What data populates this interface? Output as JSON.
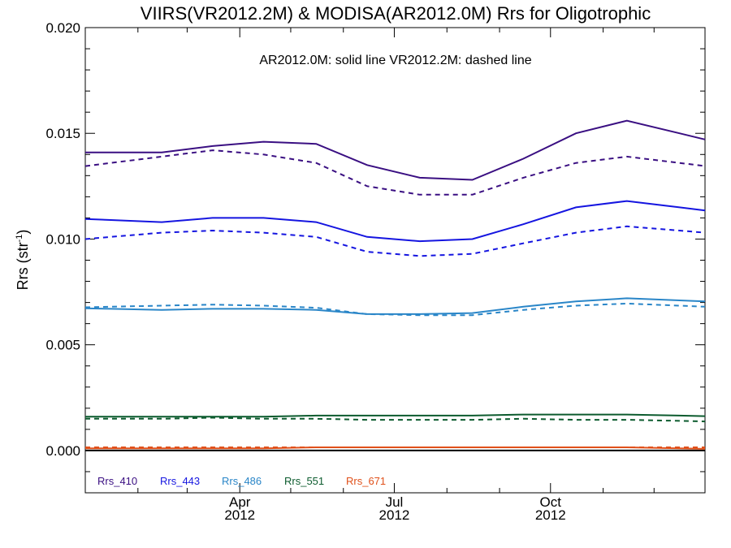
{
  "chart_data": {
    "type": "line",
    "title": "VIIRS(VR2012.2M) & MODISA(AR2012.0M)  Rrs for Oligotrophic",
    "ylabel_main": "Rrs (str",
    "ylabel_sup": "-1",
    "ylabel_tail": ")",
    "annotation": "AR2012.0M: solid line   VR2012.2M: dashed line",
    "ylim": [
      -0.002,
      0.02
    ],
    "y_ticks": [
      {
        "value": 0.0,
        "label": "0.000"
      },
      {
        "value": 0.005,
        "label": "0.005"
      },
      {
        "value": 0.01,
        "label": "0.010"
      },
      {
        "value": 0.015,
        "label": "0.015"
      },
      {
        "value": 0.02,
        "label": "0.020"
      }
    ],
    "xlim": [
      "2012-01-01",
      "2012-12-31"
    ],
    "x_ticks": [
      {
        "date": "2012-04-01",
        "month": "Apr",
        "year": "2012"
      },
      {
        "date": "2012-07-01",
        "month": "Jul",
        "year": "2012"
      },
      {
        "date": "2012-10-01",
        "month": "Oct",
        "year": "2012"
      }
    ],
    "x": [
      "2012-01-16",
      "2012-02-15",
      "2012-03-16",
      "2012-04-15",
      "2012-05-16",
      "2012-06-15",
      "2012-07-16",
      "2012-08-16",
      "2012-09-15",
      "2012-10-16",
      "2012-11-15",
      "2012-12-16"
    ],
    "zero_line": true,
    "grid": false,
    "legend_position": "bottom-left",
    "series": [
      {
        "name": "Rrs_410",
        "color": "#3a0f82",
        "solid": [
          0.0141,
          0.0141,
          0.0144,
          0.0146,
          0.0145,
          0.0135,
          0.0129,
          0.0128,
          0.0138,
          0.015,
          0.0156,
          0.015
        ],
        "dashed": [
          0.0136,
          0.0139,
          0.0142,
          0.014,
          0.0136,
          0.0125,
          0.0121,
          0.0121,
          0.0129,
          0.0136,
          0.0139,
          0.0136
        ]
      },
      {
        "name": "Rrs_443",
        "color": "#1515e0",
        "solid": [
          0.0109,
          0.0108,
          0.011,
          0.011,
          0.0108,
          0.0101,
          0.0099,
          0.01,
          0.0107,
          0.0115,
          0.0118,
          0.0115
        ],
        "dashed": [
          0.0101,
          0.0103,
          0.0104,
          0.0103,
          0.0101,
          0.0094,
          0.0092,
          0.0093,
          0.0098,
          0.0103,
          0.0106,
          0.0104
        ]
      },
      {
        "name": "Rrs_486",
        "color": "#2a86c8",
        "solid": [
          0.0067,
          0.00665,
          0.0067,
          0.0067,
          0.00665,
          0.00645,
          0.00645,
          0.0065,
          0.0068,
          0.00705,
          0.0072,
          0.0071
        ],
        "dashed": [
          0.0068,
          0.00685,
          0.0069,
          0.00685,
          0.00675,
          0.00645,
          0.0064,
          0.0064,
          0.00665,
          0.00685,
          0.00695,
          0.00685
        ]
      },
      {
        "name": "Rrs_551",
        "color": "#0c5b2e",
        "solid": [
          0.0016,
          0.0016,
          0.0016,
          0.0016,
          0.00165,
          0.00165,
          0.00165,
          0.00165,
          0.0017,
          0.0017,
          0.0017,
          0.00165
        ],
        "dashed": [
          0.0015,
          0.0015,
          0.00155,
          0.0015,
          0.0015,
          0.00145,
          0.00145,
          0.00145,
          0.0015,
          0.00145,
          0.00145,
          0.0014
        ]
      },
      {
        "name": "Rrs_671",
        "color": "#e0501a",
        "solid": [
          0.0001,
          0.0001,
          0.0001,
          0.0001,
          0.00015,
          0.00015,
          0.00015,
          0.00015,
          0.00015,
          0.00015,
          0.00015,
          0.0001
        ],
        "dashed": [
          0.00015,
          0.00015,
          0.00015,
          0.00015,
          0.00015,
          0.00015,
          0.00015,
          0.00015,
          0.00015,
          0.00015,
          0.00015,
          0.00015
        ]
      }
    ]
  }
}
